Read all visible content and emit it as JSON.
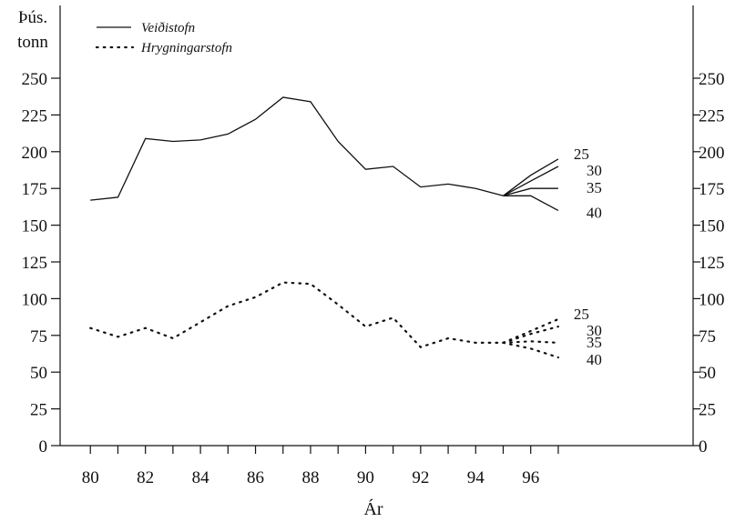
{
  "chart_data": {
    "type": "line",
    "ylabel": [
      "Þús.",
      "tonn"
    ],
    "xlabel": "Ár",
    "xlim": [
      78.9,
      101.9
    ],
    "ylim": [
      0,
      250
    ],
    "x_ticks": [
      "80",
      "82",
      "84",
      "86",
      "88",
      "90",
      "92",
      "94",
      "96"
    ],
    "x_tick_values": [
      80,
      81,
      82,
      83,
      84,
      85,
      86,
      87,
      88,
      89,
      90,
      91,
      92,
      93,
      94,
      95,
      96,
      97
    ],
    "x_label_values": [
      80,
      82,
      84,
      86,
      88,
      90,
      92,
      94,
      96
    ],
    "y_ticks": [
      "0",
      "25",
      "50",
      "75",
      "100",
      "125",
      "150",
      "175",
      "200",
      "225",
      "250"
    ],
    "y_tick_values": [
      0,
      25,
      50,
      75,
      100,
      125,
      150,
      175,
      200,
      225,
      250
    ],
    "legend_placement": "top-left",
    "series": [
      {
        "name": "Veiðistofn",
        "style": "solid",
        "x": [
          80,
          81,
          82,
          83,
          84,
          85,
          86,
          87,
          88,
          89,
          90,
          91,
          92,
          93,
          94,
          95
        ],
        "y": [
          167,
          169,
          209,
          207,
          208,
          212,
          222,
          237,
          234,
          207,
          188,
          190,
          176,
          178,
          175,
          170
        ],
        "projections": [
          {
            "label": "25",
            "x": [
              95,
              96,
              97
            ],
            "y": [
              170,
              184,
              195
            ]
          },
          {
            "label": "30",
            "x": [
              95,
              96,
              97
            ],
            "y": [
              170,
              180,
              190
            ]
          },
          {
            "label": "35",
            "x": [
              95,
              96,
              97
            ],
            "y": [
              170,
              175,
              175
            ]
          },
          {
            "label": "40",
            "x": [
              95,
              96,
              97
            ],
            "y": [
              170,
              170,
              160
            ]
          }
        ]
      },
      {
        "name": "Hrygningarstofn",
        "style": "dotted",
        "x": [
          80,
          81,
          82,
          83,
          84,
          85,
          86,
          87,
          88,
          89,
          90,
          91,
          92,
          93,
          94,
          95
        ],
        "y": [
          80,
          74,
          80,
          73,
          84,
          95,
          101,
          111,
          110,
          96,
          81,
          87,
          67,
          73,
          70,
          70
        ],
        "projections": [
          {
            "label": "25",
            "x": [
              95,
              96,
              97
            ],
            "y": [
              70,
              78,
              86
            ]
          },
          {
            "label": "30",
            "x": [
              95,
              96,
              97
            ],
            "y": [
              70,
              76,
              81
            ]
          },
          {
            "label": "35",
            "x": [
              95,
              96,
              97
            ],
            "y": [
              70,
              71,
              70
            ]
          },
          {
            "label": "40",
            "x": [
              95,
              96,
              97
            ],
            "y": [
              70,
              66,
              60
            ]
          }
        ]
      }
    ]
  }
}
